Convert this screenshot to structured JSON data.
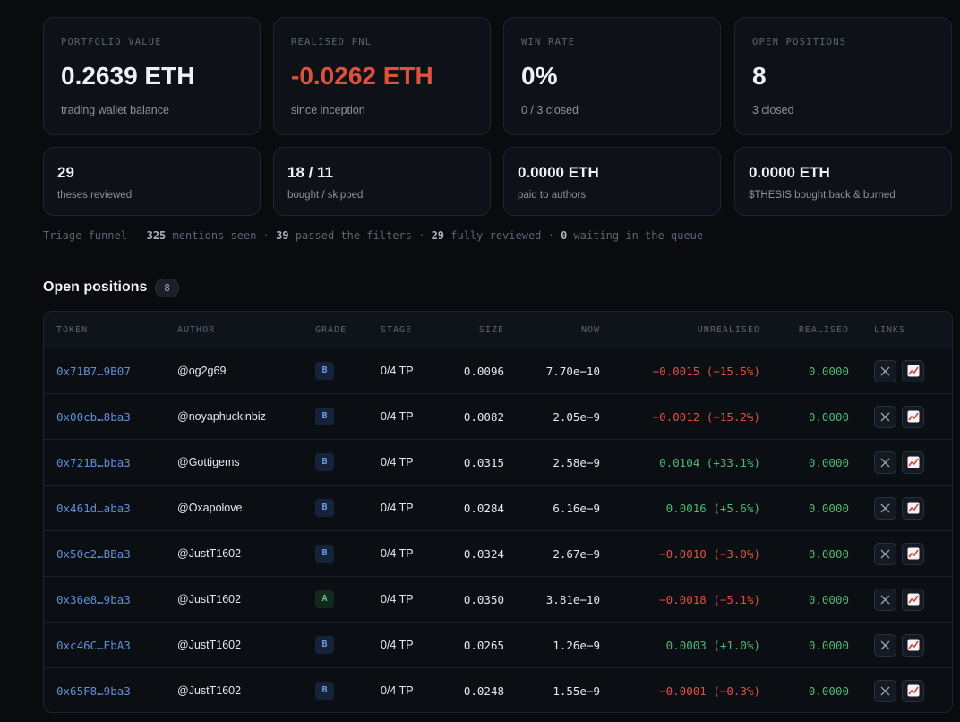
{
  "cards": [
    {
      "label": "PORTFOLIO VALUE",
      "value": "0.2639 ETH",
      "sub": "trading wallet balance"
    },
    {
      "label": "REALISED PNL",
      "value": "-0.0262 ETH",
      "sub": "since inception"
    },
    {
      "label": "WIN RATE",
      "value": "0%",
      "sub": "0 / 3 closed"
    },
    {
      "label": "OPEN POSITIONS",
      "value": "8",
      "sub": "3 closed"
    }
  ],
  "stats": [
    {
      "value": "29",
      "sub": "theses reviewed"
    },
    {
      "value": "18 / 11",
      "sub": "bought / skipped"
    },
    {
      "value": "0.0000 ETH",
      "sub": "paid to authors"
    },
    {
      "value": "0.0000 ETH",
      "sub": "$THESIS bought back & burned"
    }
  ],
  "funnel": {
    "label": "Triage funnel —",
    "parts": [
      {
        "count": "325",
        "text": "mentions seen ·"
      },
      {
        "count": "39",
        "text": "passed the filters ·"
      },
      {
        "count": "29",
        "text": "fully reviewed ·"
      },
      {
        "count": "0",
        "text": "waiting in the queue"
      }
    ]
  },
  "positions": {
    "title": "Open positions",
    "count": "8",
    "columns": [
      "TOKEN",
      "AUTHOR",
      "GRADE",
      "STAGE",
      "SIZE",
      "NOW",
      "UNREALISED",
      "REALISED",
      "LINKS"
    ],
    "rows": [
      [
        "0x71B7…9B07",
        "@og2g69",
        "B",
        "0/4 TP",
        "0.0096",
        "7.70e−10",
        "−0.0015 (−15.5%)",
        "0.0000"
      ],
      [
        "0x00cb…8ba3",
        "@noyaphuckinbiz",
        "B",
        "0/4 TP",
        "0.0082",
        "2.05e−9",
        "−0.0012 (−15.2%)",
        "0.0000"
      ],
      [
        "0x721B…bba3",
        "@Gottigems",
        "B",
        "0/4 TP",
        "0.0315",
        "2.58e−9",
        "0.0104 (+33.1%)",
        "0.0000"
      ],
      [
        "0x461d…aba3",
        "@Oxapolove",
        "B",
        "0/4 TP",
        "0.0284",
        "6.16e−9",
        "0.0016 (+5.6%)",
        "0.0000"
      ],
      [
        "0x50c2…BBa3",
        "@JustT1602",
        "B",
        "0/4 TP",
        "0.0324",
        "2.67e−9",
        "−0.0010 (−3.0%)",
        "0.0000"
      ],
      [
        "0x36e8…9ba3",
        "@JustT1602",
        "A",
        "0/4 TP",
        "0.0350",
        "3.81e−10",
        "−0.0018 (−5.1%)",
        "0.0000"
      ],
      [
        "0xc46C…EbA3",
        "@JustT1602",
        "B",
        "0/4 TP",
        "0.0265",
        "1.26e−9",
        "0.0003 (+1.0%)",
        "0.0000"
      ],
      [
        "0x65F8…9ba3",
        "@JustT1602",
        "B",
        "0/4 TP",
        "0.0248",
        "1.55e−9",
        "−0.0001 (−0.3%)",
        "0.0000"
      ]
    ]
  }
}
